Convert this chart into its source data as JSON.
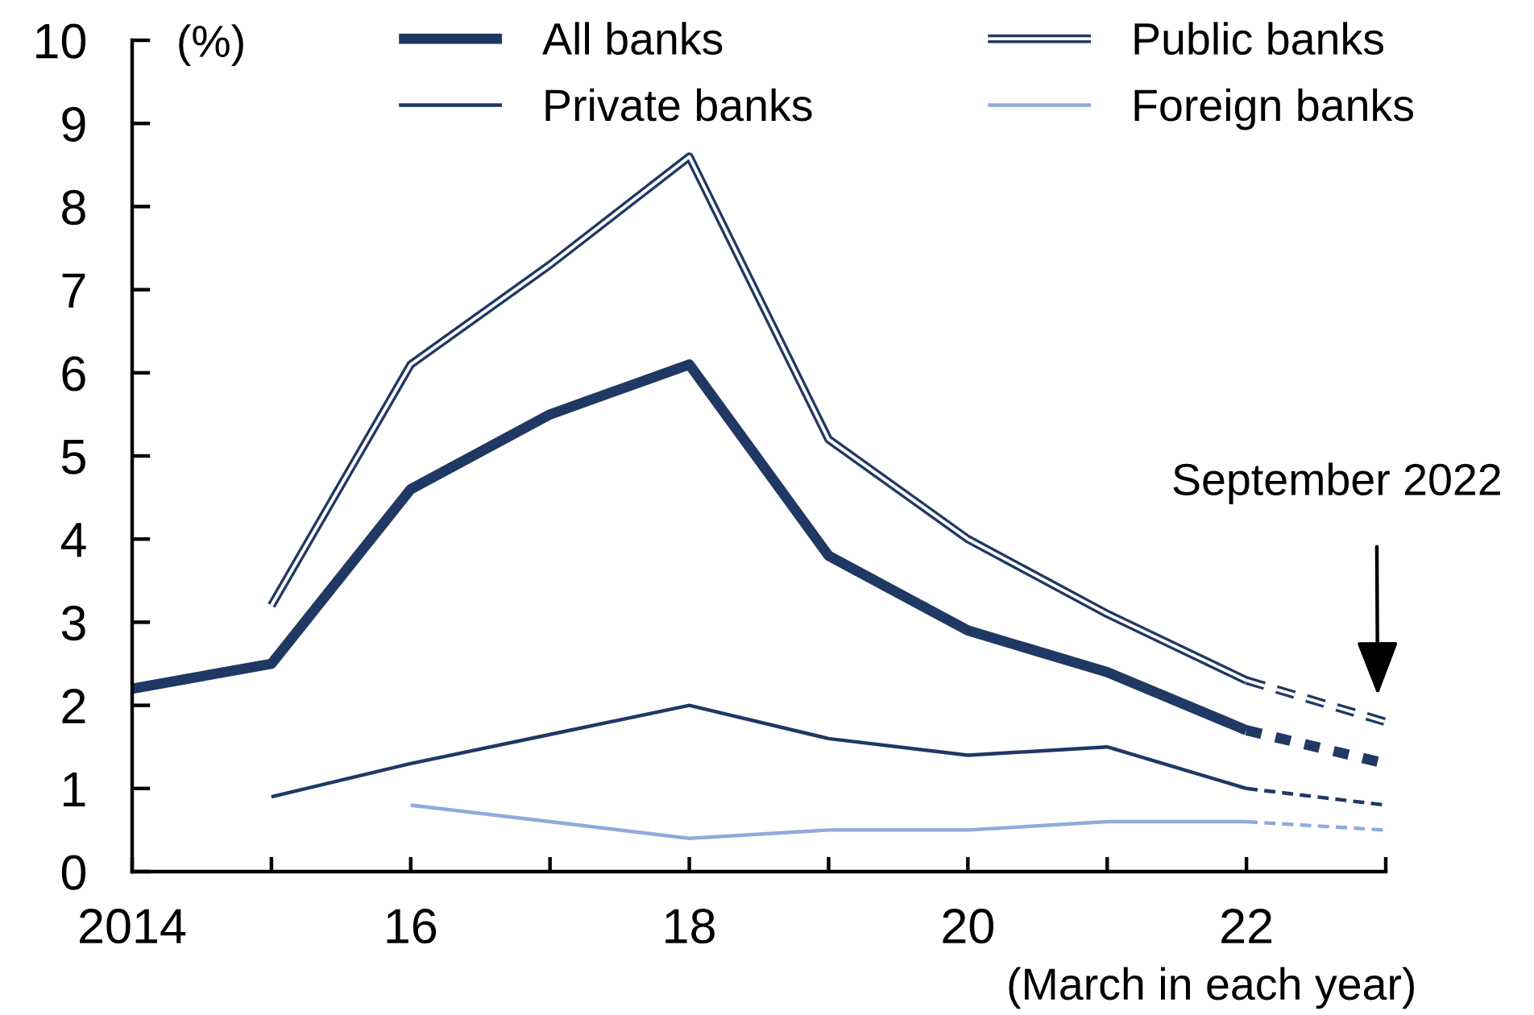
{
  "chart_data": {
    "type": "line",
    "xlabel": "(March in each year)",
    "ylabel": "(%)",
    "xlim": [
      2014,
      2023
    ],
    "ylim": [
      0,
      10
    ],
    "xticks": [
      2014,
      {
        "value": 2015,
        "label": null
      },
      {
        "value": 2016,
        "label": "16"
      },
      {
        "value": 2017,
        "label": null
      },
      {
        "value": 2018,
        "label": "18"
      },
      {
        "value": 2019,
        "label": null
      },
      {
        "value": 2020,
        "label": "20"
      },
      {
        "value": 2021,
        "label": null
      },
      {
        "value": 2022,
        "label": "22"
      },
      {
        "value": 2023,
        "label": null
      }
    ],
    "yticks": [
      0,
      1,
      2,
      3,
      4,
      5,
      6,
      7,
      8,
      9,
      10
    ],
    "legend": "top",
    "annotations": [
      "September 2022"
    ],
    "series": [
      {
        "name": "All banks",
        "color": "#203864",
        "line_style": "solid",
        "x": [
          2014,
          2015,
          2016,
          2017,
          2018,
          2019,
          2020,
          2021,
          2022
        ],
        "values": [
          2.2,
          2.5,
          4.6,
          5.5,
          6.1,
          3.8,
          2.9,
          2.4,
          1.7
        ]
      },
      {
        "name": "Public banks",
        "color": "#203864",
        "line_style": "solid",
        "x": [
          2015,
          2016,
          2017,
          2018,
          2019,
          2020,
          2021,
          2022
        ],
        "values": [
          3.2,
          6.1,
          7.3,
          8.6,
          5.2,
          4.0,
          3.1,
          2.3
        ]
      },
      {
        "name": "Private banks",
        "color": "#203864",
        "line_style": "solid",
        "x": [
          2015,
          2016,
          2017,
          2018,
          2019,
          2020,
          2021,
          2022
        ],
        "values": [
          0.9,
          1.3,
          1.65,
          2.0,
          1.6,
          1.4,
          1.5,
          1.0
        ]
      },
      {
        "name": "Foreign banks",
        "color": "#8faadc",
        "line_style": "solid",
        "x": [
          2016,
          2017,
          2018,
          2019,
          2020,
          2021,
          2022
        ],
        "values": [
          0.8,
          0.6,
          0.4,
          0.5,
          0.5,
          0.6,
          0.6
        ]
      },
      {
        "color": "#203864",
        "line_style": "dashed",
        "x": [
          2022,
          2023
        ],
        "values": [
          1.7,
          1.3
        ]
      },
      {
        "color": "#203864",
        "line_style": "dashed",
        "x": [
          2022,
          2023
        ],
        "values": [
          2.3,
          1.8
        ]
      },
      {
        "color": "#203864",
        "line_style": "dashed",
        "x": [
          2022,
          2023
        ],
        "values": [
          1.0,
          0.8
        ]
      },
      {
        "color": "#8faadc",
        "line_style": "dashed",
        "x": [
          2022,
          2023
        ],
        "values": [
          0.6,
          0.5
        ]
      }
    ]
  }
}
